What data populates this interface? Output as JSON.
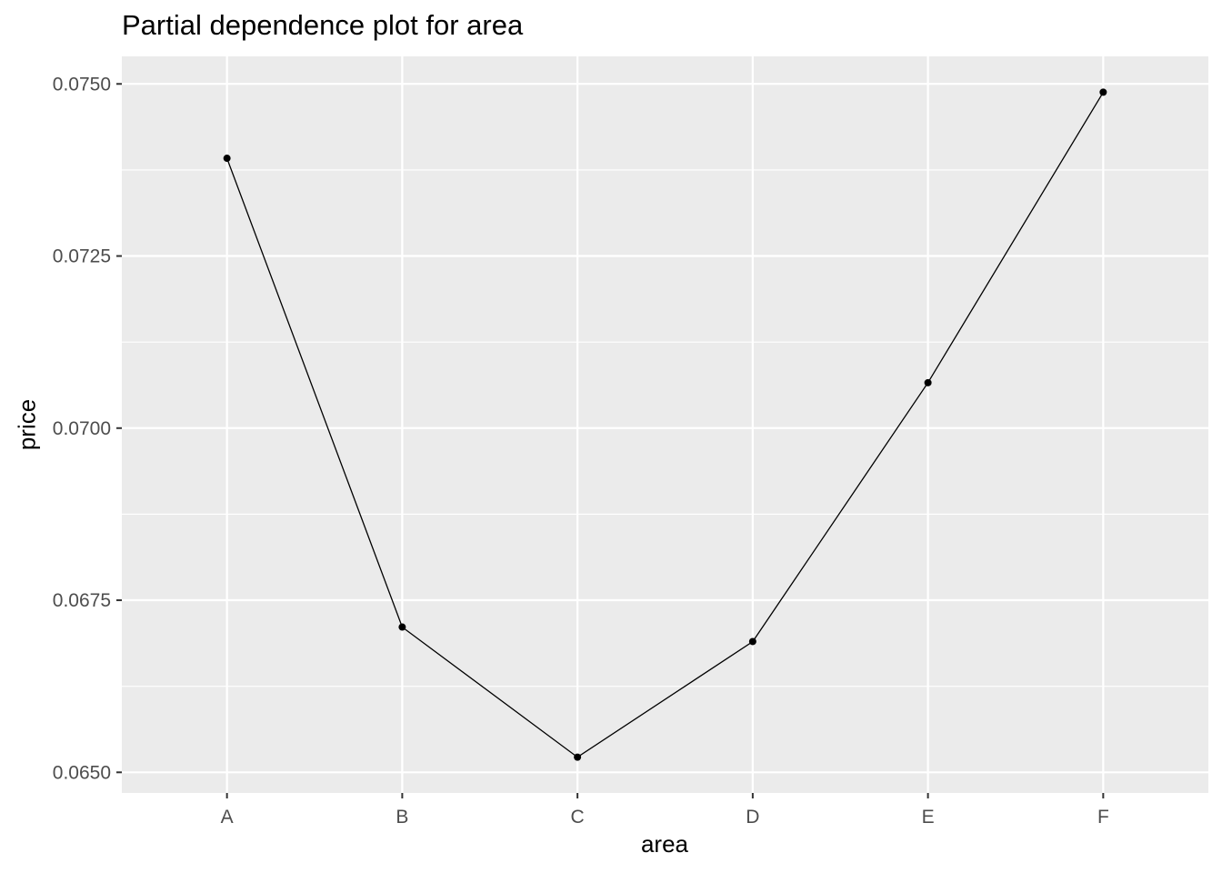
{
  "chart_data": {
    "type": "line",
    "title": "Partial dependence plot for area",
    "xlabel": "area",
    "ylabel": "price",
    "categories": [
      "A",
      "B",
      "C",
      "D",
      "E",
      "F"
    ],
    "series": [
      {
        "values": [
          0.07392,
          0.06711,
          0.06522,
          0.0669,
          0.07066,
          0.07488
        ]
      }
    ],
    "ylim": [
      0.0647,
      0.0754
    ],
    "yticks": [
      "0.0650",
      "0.0675",
      "0.0700",
      "0.0725",
      "0.0750"
    ],
    "ytick_values": [
      0.065,
      0.0675,
      0.07,
      0.0725,
      0.075
    ],
    "grid": true,
    "legend": "none",
    "colors": {
      "panel": "#EBEBEB",
      "grid": "#FFFFFF",
      "line": "#000000",
      "tick_text": "#4D4D4D"
    }
  }
}
